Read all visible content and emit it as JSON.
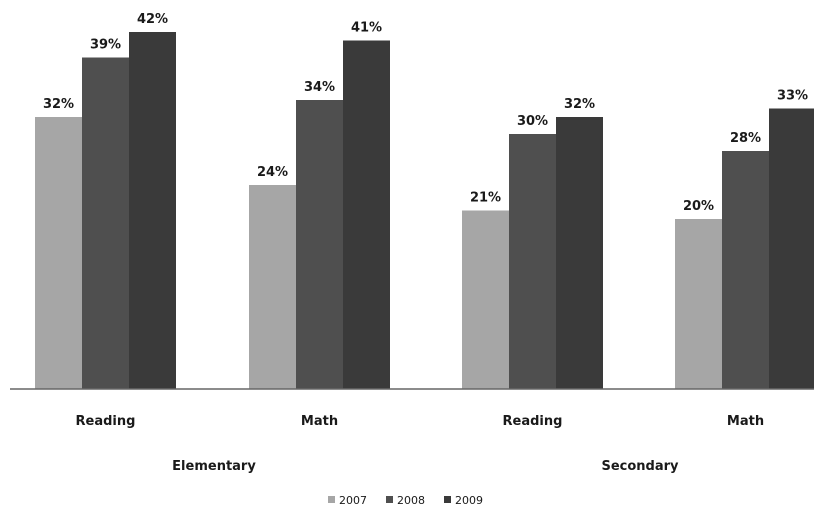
{
  "chart_data": {
    "type": "bar",
    "categories": [
      "Reading",
      "Math",
      "Reading",
      "Math"
    ],
    "groups": [
      {
        "label": "Elementary",
        "categories": [
          "Reading",
          "Math"
        ]
      },
      {
        "label": "Secondary",
        "categories": [
          "Reading",
          "Math"
        ]
      }
    ],
    "series": [
      {
        "name": "2007",
        "values": [
          32,
          24,
          21,
          20
        ],
        "color": "#a6a6a6"
      },
      {
        "name": "2008",
        "values": [
          39,
          34,
          30,
          28
        ],
        "color": "#4f4f4f"
      },
      {
        "name": "2009",
        "values": [
          42,
          41,
          32,
          33
        ],
        "color": "#3a3a3a"
      }
    ],
    "value_suffix": "%",
    "ylim": [
      0,
      42
    ],
    "grid": false,
    "legend_position": "bottom-center",
    "title": "",
    "xlabel": "",
    "ylabel": ""
  }
}
